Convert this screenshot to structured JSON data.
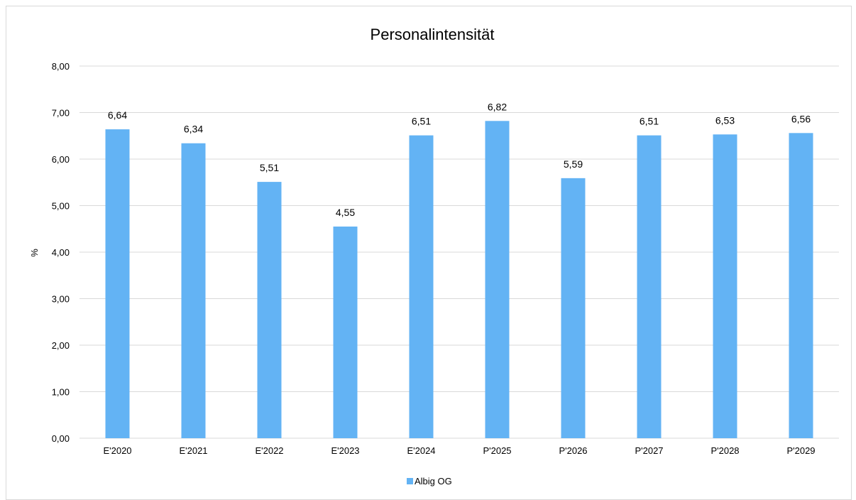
{
  "chart_data": {
    "type": "bar",
    "title": "Personalintensität",
    "ylabel": "%",
    "xlabel": "",
    "categories": [
      "E'2020",
      "E'2021",
      "E'2022",
      "E'2023",
      "E'2024",
      "P'2025",
      "P'2026",
      "P'2027",
      "P'2028",
      "P'2029"
    ],
    "series": [
      {
        "name": "Albig OG",
        "values": [
          6.64,
          6.34,
          5.51,
          4.55,
          6.51,
          6.82,
          5.59,
          6.51,
          6.53,
          6.56
        ],
        "value_labels": [
          "6,64",
          "6,34",
          "5,51",
          "4,55",
          "6,51",
          "6,82",
          "5,59",
          "6,51",
          "6,53",
          "6,56"
        ],
        "color": "#63b3f4"
      }
    ],
    "ylim": [
      0,
      8
    ],
    "yticks": [
      0,
      1,
      2,
      3,
      4,
      5,
      6,
      7,
      8
    ],
    "ytick_labels": [
      "0,00",
      "1,00",
      "2,00",
      "3,00",
      "4,00",
      "5,00",
      "6,00",
      "7,00",
      "8,00"
    ],
    "grid": true,
    "legend_position": "bottom-center",
    "gridline_color": "#d9d9d9"
  }
}
